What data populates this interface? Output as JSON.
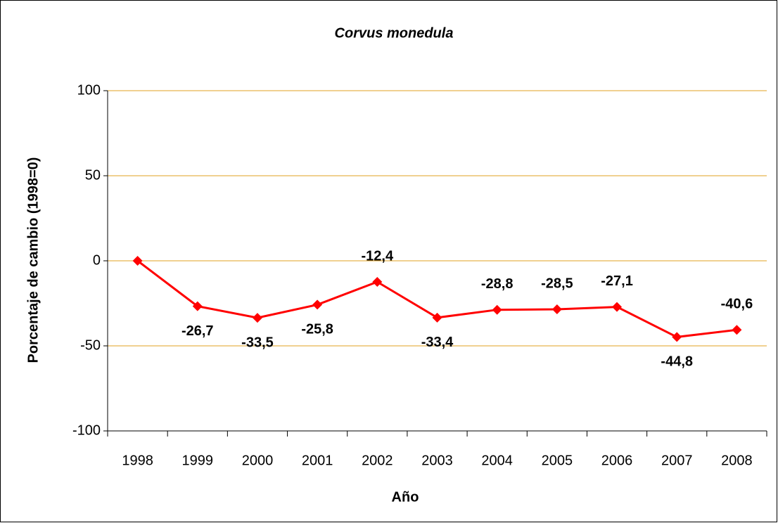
{
  "chart_data": {
    "type": "line",
    "title": "Corvus monedula",
    "x_label": "Año",
    "y_label": "Porcentaje de cambio (1998=0)",
    "categories": [
      "1998",
      "1999",
      "2000",
      "2001",
      "2002",
      "2003",
      "2004",
      "2005",
      "2006",
      "2007",
      "2008"
    ],
    "series": [
      {
        "name": "Corvus monedula",
        "color": "#ff0000",
        "values": [
          0,
          -26.7,
          -33.5,
          -25.8,
          -12.4,
          -33.4,
          -28.8,
          -28.5,
          -27.1,
          -44.8,
          -40.6
        ],
        "value_labels": [
          null,
          "-26,7",
          "-33,5",
          "-25,8",
          "-12,4",
          "-33,4",
          "-28,8",
          "-28,5",
          "-27,1",
          "-44,8",
          "-40,6"
        ]
      }
    ],
    "ylim": [
      -100,
      100
    ],
    "yticks": [
      -100,
      -50,
      0,
      50,
      100
    ],
    "grid": true,
    "grid_color": "#e0a020"
  }
}
